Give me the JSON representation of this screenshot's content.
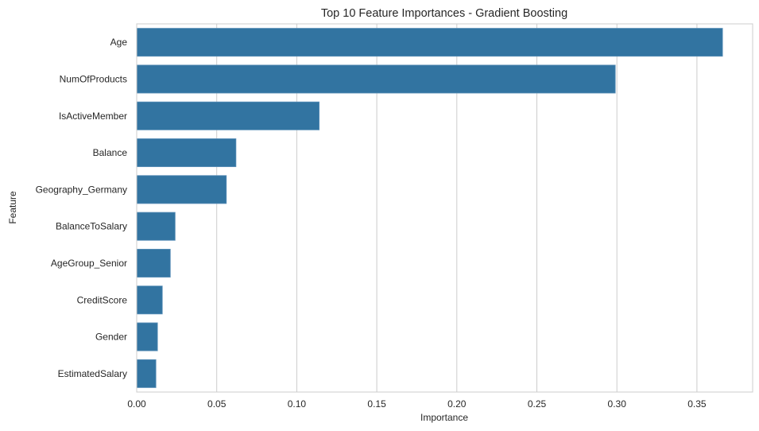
{
  "chart_data": {
    "type": "bar",
    "orientation": "horizontal",
    "title": "Top 10 Feature Importances - Gradient Boosting",
    "xlabel": "Importance",
    "ylabel": "Feature",
    "categories": [
      "Age",
      "NumOfProducts",
      "IsActiveMember",
      "Balance",
      "Geography_Germany",
      "BalanceToSalary",
      "AgeGroup_Senior",
      "CreditScore",
      "Gender",
      "EstimatedSalary"
    ],
    "values": [
      0.366,
      0.299,
      0.114,
      0.062,
      0.056,
      0.024,
      0.021,
      0.016,
      0.013,
      0.012
    ],
    "xlim": [
      0,
      0.3835
    ],
    "xticks": [
      0.0,
      0.05,
      0.1,
      0.15,
      0.2,
      0.25,
      0.3,
      0.35
    ],
    "xtick_labels": [
      "0.00",
      "0.05",
      "0.10",
      "0.15",
      "0.20",
      "0.25",
      "0.30",
      "0.35"
    ],
    "grid": "x",
    "legend": null,
    "bar_color": "#3274a1"
  }
}
